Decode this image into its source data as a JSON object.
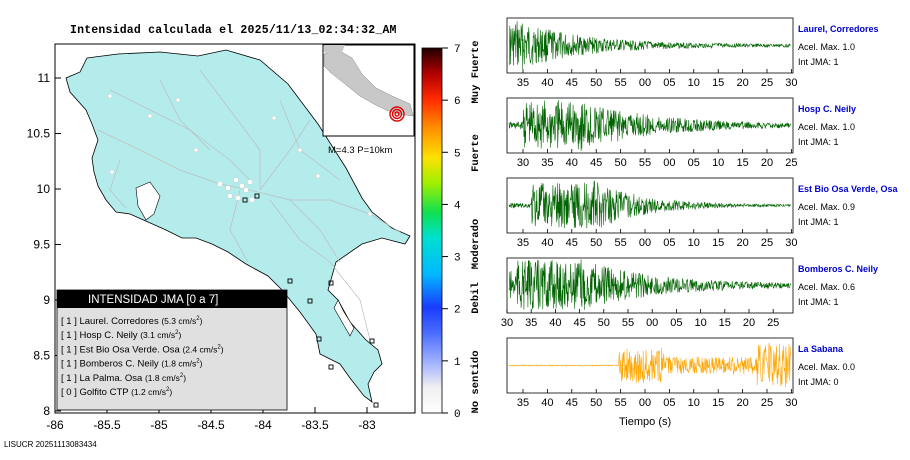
{
  "title": "Intensidad calculada el 2025/11/13_02:34:32_AM",
  "footer": "LISUCR 20251113083434",
  "map": {
    "lat_ticks": [
      "11",
      "10.5",
      "10",
      "9.5",
      "9",
      "8.5",
      "8"
    ],
    "lon_ticks": [
      "-86",
      "-85.5",
      "-85",
      "-84.5",
      "-84",
      "-83.5",
      "-83"
    ],
    "inset_label": "M=4.3 P=10km",
    "land_color": "#b4ecec",
    "legend": {
      "title": "INTENSIDAD JMA [0 a 7]",
      "rows": [
        {
          "level": "1",
          "name": "Laurel. Corredores",
          "value": "5.3"
        },
        {
          "level": "1",
          "name": "Hosp C. Neily",
          "value": "3.1"
        },
        {
          "level": "1",
          "name": "Est Bio Osa Verde. Osa",
          "value": "2.4"
        },
        {
          "level": "1",
          "name": "Bomberos C. Neily",
          "value": "1.8"
        },
        {
          "level": "1",
          "name": "La Palma. Osa",
          "value": "1.8"
        },
        {
          "level": "0",
          "name": "Golfito CTP",
          "value": "1.2"
        }
      ],
      "unit_prefix": "cm/s",
      "unit_sup": "2"
    }
  },
  "colorbar": {
    "ticks": [
      "7",
      "6",
      "5",
      "4",
      "3",
      "2",
      "1",
      "0"
    ],
    "categories": [
      "Muy Fuerte",
      "Fuerte",
      "Moderado",
      "Debil",
      "No sentido"
    ]
  },
  "chart_data": [
    {
      "type": "line",
      "station": "Laurel, Corredores",
      "x_ticks": [
        "35",
        "40",
        "45",
        "50",
        "55",
        "00",
        "05",
        "10",
        "15",
        "20",
        "25",
        "30"
      ],
      "color": "#006400",
      "peak_accel": "1.0",
      "jma": "1"
    },
    {
      "type": "line",
      "station": "Hosp C. Neily",
      "x_ticks": [
        "30",
        "35",
        "40",
        "45",
        "50",
        "55",
        "00",
        "05",
        "10",
        "15",
        "20",
        "25"
      ],
      "color": "#006400",
      "peak_accel": "1.0",
      "jma": "1"
    },
    {
      "type": "line",
      "station": "Est Bio Osa Verde, Osa",
      "x_ticks": [
        "35",
        "40",
        "45",
        "50",
        "55",
        "00",
        "05",
        "10",
        "15",
        "20",
        "25",
        "30"
      ],
      "color": "#006400",
      "peak_accel": "0.9",
      "jma": "1"
    },
    {
      "type": "line",
      "station": "Bomberos C. Neily",
      "x_ticks": [
        "30",
        "35",
        "40",
        "45",
        "50",
        "55",
        "00",
        "05",
        "10",
        "15",
        "20",
        "25"
      ],
      "color": "#006400",
      "peak_accel": "0.6",
      "jma": "1"
    },
    {
      "type": "line",
      "station": "La Sabana",
      "x_ticks": [
        "35",
        "40",
        "45",
        "50",
        "55",
        "00",
        "05",
        "10",
        "15",
        "20",
        "25",
        "30"
      ],
      "color": "#ffa500",
      "peak_accel": "0.0",
      "jma": "0"
    }
  ],
  "labels": {
    "accel_prefix": "Acel. Max. ",
    "jma_prefix": "Int JMA: ",
    "xlabel": "Tiempo (s)"
  }
}
